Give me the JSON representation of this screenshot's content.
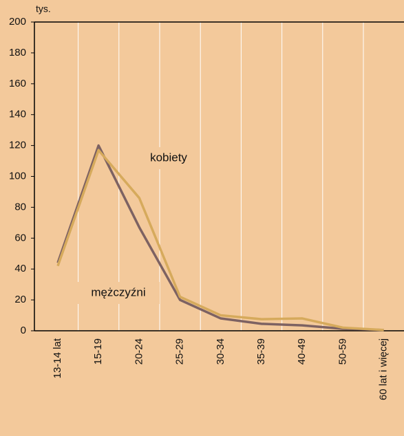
{
  "chart_data": {
    "type": "line",
    "y_unit": "tys.",
    "categories": [
      "13-14 lat",
      "15-19",
      "20-24",
      "25-29",
      "30-34",
      "35-39",
      "40-49",
      "50-59",
      "60 lat i więcej"
    ],
    "series": [
      {
        "name": "mężczyźni",
        "color": "#7d6262",
        "values": [
          44,
          120,
          67,
          20,
          8,
          4.5,
          3.5,
          1.3,
          0.5
        ]
      },
      {
        "name": "kobiety",
        "color": "#d6aa5c",
        "values": [
          42,
          117,
          86,
          22,
          10,
          7.5,
          8,
          2,
          0.5
        ]
      }
    ],
    "ylim": [
      0,
      200
    ],
    "yticks": [
      0,
      20,
      40,
      60,
      80,
      100,
      120,
      140,
      160,
      180,
      200
    ]
  }
}
